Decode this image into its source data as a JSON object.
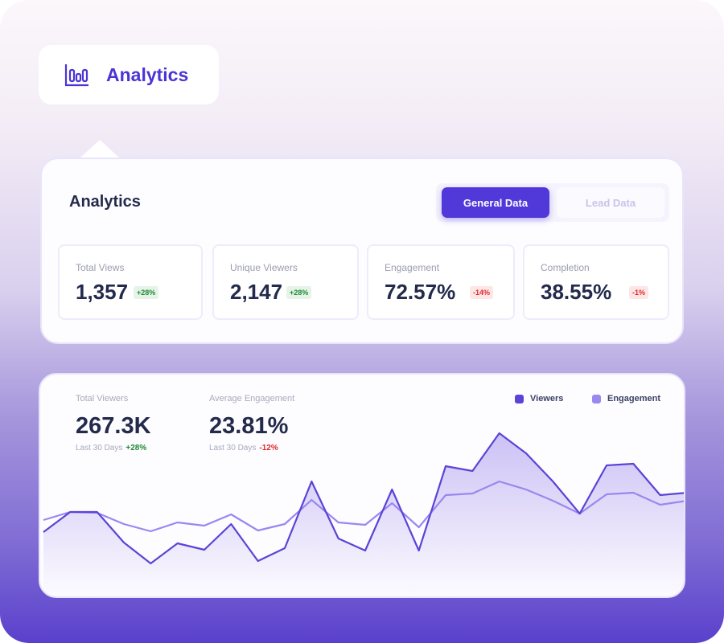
{
  "header": {
    "title": "Analytics",
    "icon": "bar-chart-icon"
  },
  "panel": {
    "title": "Analytics",
    "tabs": [
      {
        "label": "General Data",
        "active": true
      },
      {
        "label": "Lead Data",
        "active": false
      }
    ]
  },
  "stats": [
    {
      "label": "Total Views",
      "value": "1,357",
      "change": "+28%",
      "trend": "up"
    },
    {
      "label": "Unique Viewers",
      "value": "2,147",
      "change": "+28%",
      "trend": "up"
    },
    {
      "label": "Engagement",
      "value": "72.57%",
      "change": "-14%",
      "trend": "down"
    },
    {
      "label": "Completion",
      "value": "38.55%",
      "change": "-1%",
      "trend": "down"
    }
  ],
  "summary": [
    {
      "label": "Total Viewers",
      "value": "267.3K",
      "period": "Last 30 Days",
      "change": "+28%",
      "trend": "up"
    },
    {
      "label": "Average Engagement",
      "value": "23.81%",
      "period": "Last 30 Days",
      "change": "-12%",
      "trend": "down"
    }
  ],
  "colors": {
    "accent": "#5138d8",
    "viewers": "#5a44d6",
    "engagement": "#9b87f0",
    "up": "#1f8a35",
    "down": "#e5282a"
  },
  "chart_data": {
    "type": "line",
    "legend": "top-right",
    "grid": false,
    "series": [
      {
        "name": "Viewers",
        "values": [
          90,
          115,
          115,
          77,
          51,
          76,
          68,
          100,
          54,
          70,
          153,
          82,
          67,
          143,
          67,
          172,
          166,
          213,
          188,
          153,
          113,
          173,
          175,
          136,
          139
        ]
      },
      {
        "name": "Engagement",
        "values": [
          105,
          115,
          114,
          100,
          91,
          102,
          98,
          112,
          92,
          100,
          130,
          102,
          99,
          126,
          96,
          136,
          138,
          153,
          143,
          129,
          113,
          137,
          139,
          124,
          129
        ]
      }
    ]
  }
}
